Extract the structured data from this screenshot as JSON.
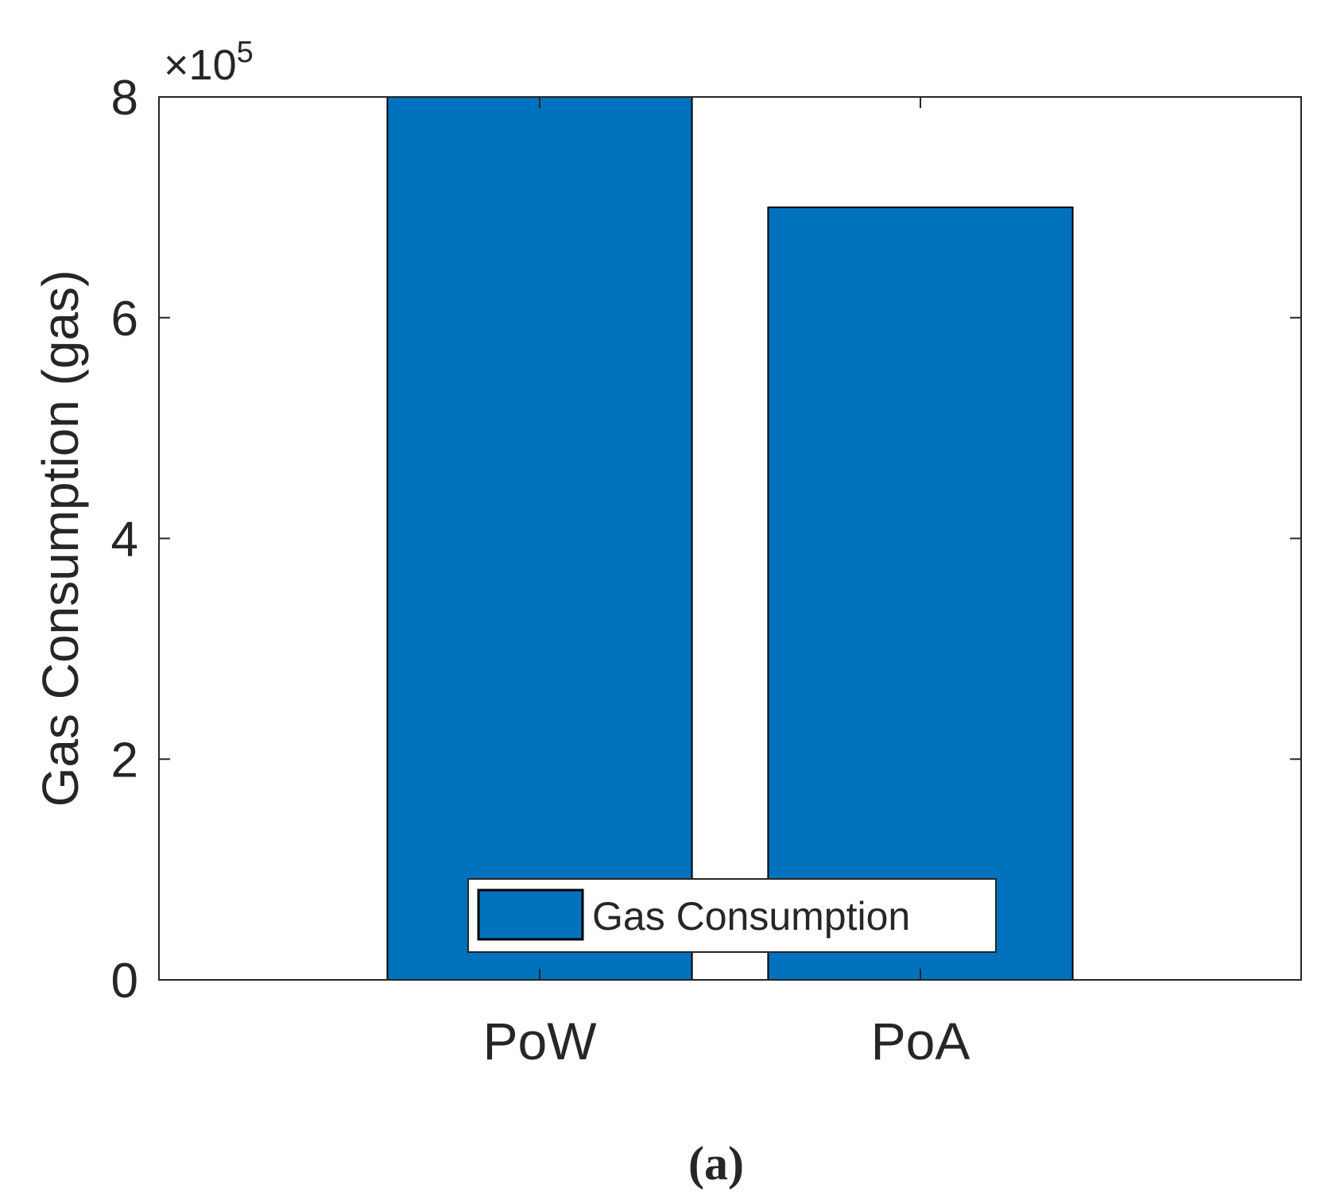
{
  "chart_data": {
    "type": "bar",
    "title": "",
    "xlabel": "",
    "ylabel": "Gas Consumption (gas)",
    "categories": [
      "PoW",
      "PoA"
    ],
    "series": [
      {
        "name": "Gas Consumption",
        "values": [
          800000,
          700000
        ]
      }
    ],
    "ylim": [
      0,
      800000
    ],
    "yticks": [
      0,
      200000,
      400000,
      600000,
      800000
    ],
    "ytick_labels": [
      "0",
      "2",
      "4",
      "6",
      "8"
    ],
    "y_exponent_label": {
      "times": "×10",
      "power": "5"
    },
    "xlim": [
      0.5,
      3.5
    ],
    "x_positions": [
      1.5,
      2.5
    ],
    "bar_width_units": 0.8,
    "legend": {
      "entries": [
        "Gas Consumption"
      ],
      "placement": "bottom-center"
    },
    "grid": false,
    "colors": {
      "bar": "#0072BD",
      "axis": "#262626",
      "bar_edge": "#000000"
    }
  },
  "caption": "(a)"
}
